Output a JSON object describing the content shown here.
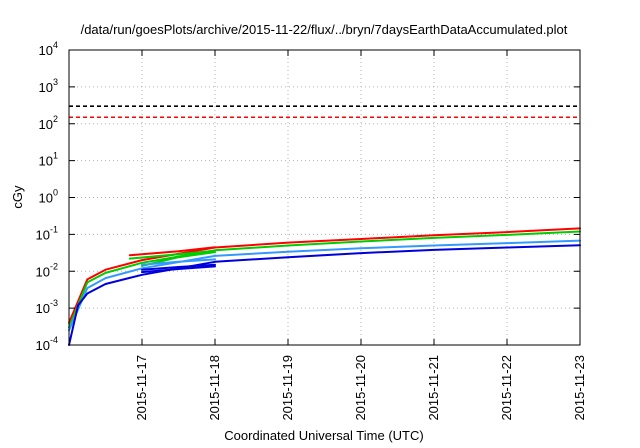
{
  "chart_data": {
    "type": "line",
    "title": "/data/run/goesPlots/archive/2015-11-22/flux/../bryn/7daysEarthDataAccumulated.plot",
    "xlabel": "Coordinated Universal Time (UTC)",
    "ylabel": "cGy",
    "y_scale": "log",
    "ylim_exponents": [
      -4,
      4
    ],
    "y_tick_base": "10",
    "y_tick_exponents": [
      "-4",
      "-3",
      "-2",
      "-1",
      "0",
      "1",
      "2",
      "3",
      "4"
    ],
    "xlim": [
      "2015-11-16",
      "2015-11-23"
    ],
    "x_ticks": [
      "2015-11-17",
      "2015-11-18",
      "2015-11-19",
      "2015-11-20",
      "2015-11-21",
      "2015-11-22",
      "2015-11-23"
    ],
    "grid": true,
    "thresholds": [
      {
        "value": 300,
        "color": "#000000",
        "style": "dashed"
      },
      {
        "value": 150,
        "color": "#ff0000",
        "style": "dashed"
      }
    ],
    "series": [
      {
        "color": "#ff0000",
        "points": [
          [
            "2015-11-16",
            0.0004
          ],
          [
            "2015-11-16T06:00",
            0.006
          ],
          [
            "2015-11-16T12:00",
            0.011
          ],
          [
            "2015-11-17",
            0.02
          ],
          [
            "2015-11-18",
            0.044
          ],
          [
            "2015-11-19",
            0.06
          ],
          [
            "2015-11-20",
            0.075
          ],
          [
            "2015-11-21",
            0.095
          ],
          [
            "2015-11-22",
            0.115
          ],
          [
            "2015-11-23",
            0.145
          ]
        ]
      },
      {
        "color": "#ff0000",
        "points": [
          [
            "2015-11-16T20:00",
            0.027
          ],
          [
            "2015-11-17T12:00",
            0.035
          ],
          [
            "2015-11-18",
            0.045
          ]
        ]
      },
      {
        "color": "#00cc00",
        "points": [
          [
            "2015-11-16",
            0.0003
          ],
          [
            "2015-11-16T06:00",
            0.005
          ],
          [
            "2015-11-16T12:00",
            0.009
          ],
          [
            "2015-11-17",
            0.017
          ],
          [
            "2015-11-18",
            0.037
          ],
          [
            "2015-11-19",
            0.05
          ],
          [
            "2015-11-20",
            0.064
          ],
          [
            "2015-11-21",
            0.08
          ],
          [
            "2015-11-22",
            0.097
          ],
          [
            "2015-11-23",
            0.12
          ]
        ]
      },
      {
        "color": "#00cc00",
        "points": [
          [
            "2015-11-16T20:00",
            0.022
          ],
          [
            "2015-11-17T12:00",
            0.029
          ],
          [
            "2015-11-18",
            0.036
          ]
        ]
      },
      {
        "color": "#00cc00",
        "points": [
          [
            "2015-11-17",
            0.014
          ],
          [
            "2015-11-17T12:00",
            0.024
          ],
          [
            "2015-11-18",
            0.033
          ]
        ]
      },
      {
        "color": "#3399ff",
        "points": [
          [
            "2015-11-16",
            0.00025
          ],
          [
            "2015-11-16T06:00",
            0.0035
          ],
          [
            "2015-11-16T12:00",
            0.0065
          ],
          [
            "2015-11-17",
            0.012
          ],
          [
            "2015-11-18",
            0.026
          ],
          [
            "2015-11-19",
            0.034
          ],
          [
            "2015-11-20",
            0.042
          ],
          [
            "2015-11-21",
            0.05
          ],
          [
            "2015-11-22",
            0.058
          ],
          [
            "2015-11-23",
            0.068
          ]
        ]
      },
      {
        "color": "#3399ff",
        "points": [
          [
            "2015-11-17",
            0.015
          ],
          [
            "2015-11-17T12:00",
            0.018
          ],
          [
            "2015-11-18",
            0.021
          ]
        ]
      },
      {
        "color": "#0000dd",
        "points": [
          [
            "2015-11-16",
            0.0001
          ],
          [
            "2015-11-16T03:00",
            0.0012
          ],
          [
            "2015-11-16T06:00",
            0.0025
          ],
          [
            "2015-11-16T12:00",
            0.0045
          ],
          [
            "2015-11-17",
            0.008
          ],
          [
            "2015-11-18",
            0.018
          ],
          [
            "2015-11-19",
            0.024
          ],
          [
            "2015-11-20",
            0.031
          ],
          [
            "2015-11-21",
            0.038
          ],
          [
            "2015-11-22",
            0.044
          ],
          [
            "2015-11-23",
            0.051
          ]
        ]
      },
      {
        "color": "#0000dd",
        "points": [
          [
            "2015-11-17",
            0.0095
          ],
          [
            "2015-11-17T12:00",
            0.0115
          ],
          [
            "2015-11-18",
            0.0135
          ]
        ]
      },
      {
        "color": "#0000dd",
        "points": [
          [
            "2015-11-17",
            0.011
          ],
          [
            "2015-11-17T12:00",
            0.013
          ],
          [
            "2015-11-18",
            0.015
          ]
        ]
      }
    ]
  }
}
